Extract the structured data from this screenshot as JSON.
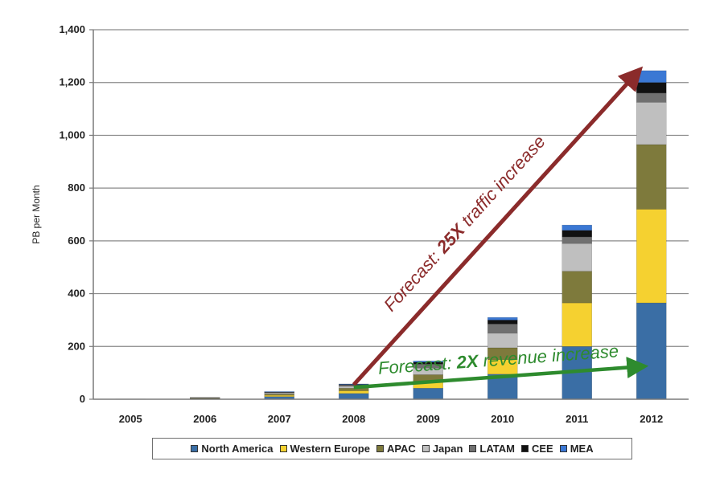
{
  "chart_data": {
    "type": "bar",
    "stacked": true,
    "ylabel": "PB per Month",
    "ylim": [
      0,
      1400
    ],
    "yticks": [
      0,
      200,
      400,
      600,
      800,
      1000,
      1200,
      1400
    ],
    "ytick_labels": [
      "0",
      "200",
      "400",
      "600",
      "800",
      "1,000",
      "1,200",
      "1,400"
    ],
    "grid": true,
    "categories": [
      "2005",
      "2006",
      "2007",
      "2008",
      "2009",
      "2010",
      "2011",
      "2012"
    ],
    "series": [
      {
        "name": "North America",
        "color": "#3a6ea5",
        "values": [
          1,
          3,
          10,
          22,
          42,
          95,
          200,
          365
        ]
      },
      {
        "name": "Western Europe",
        "color": "#f5d130",
        "values": [
          0,
          1,
          5,
          10,
          26,
          55,
          165,
          355
        ]
      },
      {
        "name": "APAC",
        "color": "#7e7a3c",
        "values": [
          0,
          1,
          5,
          10,
          25,
          45,
          120,
          245
        ]
      },
      {
        "name": "Japan",
        "color": "#bfbfbf",
        "values": [
          0,
          1,
          4,
          7,
          25,
          55,
          105,
          160
        ]
      },
      {
        "name": "LATAM",
        "color": "#707070",
        "values": [
          0,
          1,
          3,
          5,
          15,
          35,
          25,
          35
        ]
      },
      {
        "name": "CEE",
        "color": "#111111",
        "values": [
          0,
          0,
          1,
          2,
          7,
          15,
          25,
          40
        ]
      },
      {
        "name": "MEA",
        "color": "#3b78d4",
        "values": [
          0,
          0,
          1,
          2,
          5,
          10,
          20,
          45
        ]
      }
    ],
    "legend_position": "bottom",
    "annotations": [
      {
        "text_prefix": "Forecast: ",
        "text_bold": "25X",
        "text_suffix": " traffic increase",
        "color": "#8b2b2b",
        "from": {
          "category": "2008",
          "value": 55
        },
        "to": {
          "category": "2012",
          "value": 1250
        }
      },
      {
        "text_prefix": "Forecast: ",
        "text_bold": "2X",
        "text_suffix": " revenue increase",
        "color": "#2e8b2e",
        "from": {
          "category": "2008",
          "value": 45
        },
        "to": {
          "category": "2012",
          "value": 125
        }
      }
    ]
  }
}
